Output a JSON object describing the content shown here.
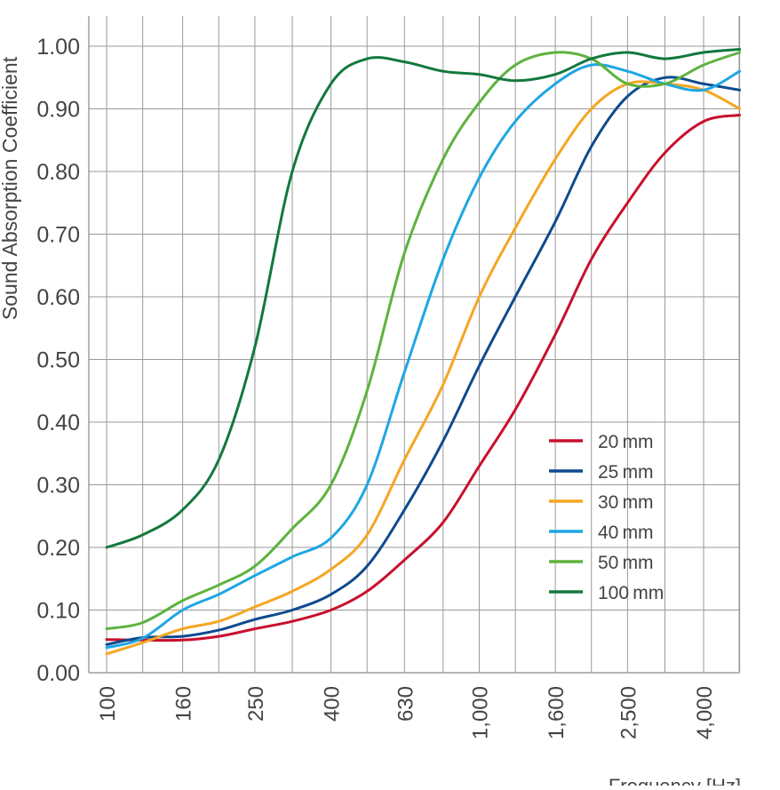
{
  "chart_data": {
    "type": "line",
    "xlabel": "Frequency [Hz]",
    "ylabel": "Sound Absorption Coefficient",
    "x_scale": "log",
    "x_tick_labels": [
      "100",
      "160",
      "250",
      "400",
      "630",
      "1,000",
      "1,600",
      "2,500",
      "4,000"
    ],
    "x_tick_values": [
      100,
      160,
      250,
      400,
      630,
      1000,
      1600,
      2500,
      4000
    ],
    "x_grid_values": [
      100,
      125,
      160,
      200,
      250,
      315,
      400,
      500,
      630,
      800,
      1000,
      1250,
      1600,
      2000,
      2500,
      3150,
      4000,
      5000
    ],
    "xlim": [
      90,
      5500
    ],
    "ylim": [
      0,
      1.0
    ],
    "y_ticks": [
      0.0,
      0.1,
      0.2,
      0.3,
      0.4,
      0.5,
      0.6,
      0.7,
      0.8,
      0.9,
      1.0
    ],
    "y_tick_labels": [
      "0.00",
      "0.10",
      "0.20",
      "0.30",
      "0.40",
      "0.50",
      "0.60",
      "0.70",
      "0.80",
      "0.90",
      "1.00"
    ],
    "grid": true,
    "legend_position": "right",
    "x": [
      100,
      125,
      160,
      200,
      250,
      315,
      400,
      500,
      630,
      800,
      1000,
      1250,
      1600,
      2000,
      2500,
      3150,
      4000,
      5000
    ],
    "series": [
      {
        "name": "20 mm",
        "color": "#c8102e",
        "values": [
          0.053,
          0.052,
          0.052,
          0.058,
          0.07,
          0.082,
          0.1,
          0.13,
          0.18,
          0.24,
          0.33,
          0.42,
          0.54,
          0.66,
          0.75,
          0.83,
          0.88,
          0.89
        ]
      },
      {
        "name": "25 mm",
        "color": "#0e4a8f",
        "values": [
          0.045,
          0.056,
          0.058,
          0.068,
          0.085,
          0.1,
          0.125,
          0.17,
          0.26,
          0.37,
          0.49,
          0.6,
          0.72,
          0.84,
          0.92,
          0.95,
          0.94,
          0.93
        ]
      },
      {
        "name": "30 mm",
        "color": "#f5a623",
        "values": [
          0.03,
          0.048,
          0.07,
          0.082,
          0.105,
          0.13,
          0.165,
          0.22,
          0.34,
          0.46,
          0.6,
          0.71,
          0.82,
          0.9,
          0.94,
          0.94,
          0.93,
          0.9
        ]
      },
      {
        "name": "40 mm",
        "color": "#1ea6e3",
        "values": [
          0.04,
          0.055,
          0.1,
          0.125,
          0.155,
          0.185,
          0.215,
          0.3,
          0.48,
          0.66,
          0.79,
          0.88,
          0.94,
          0.97,
          0.96,
          0.94,
          0.93,
          0.96
        ]
      },
      {
        "name": "50 mm",
        "color": "#5db33d",
        "values": [
          0.07,
          0.08,
          0.115,
          0.14,
          0.17,
          0.23,
          0.3,
          0.45,
          0.67,
          0.82,
          0.91,
          0.97,
          0.99,
          0.98,
          0.94,
          0.94,
          0.97,
          0.99
        ]
      },
      {
        "name": "100 mm",
        "color": "#13783e",
        "values": [
          0.2,
          0.22,
          0.26,
          0.34,
          0.52,
          0.8,
          0.94,
          0.98,
          0.975,
          0.96,
          0.955,
          0.945,
          0.955,
          0.98,
          0.99,
          0.98,
          0.99,
          0.995
        ]
      }
    ]
  }
}
